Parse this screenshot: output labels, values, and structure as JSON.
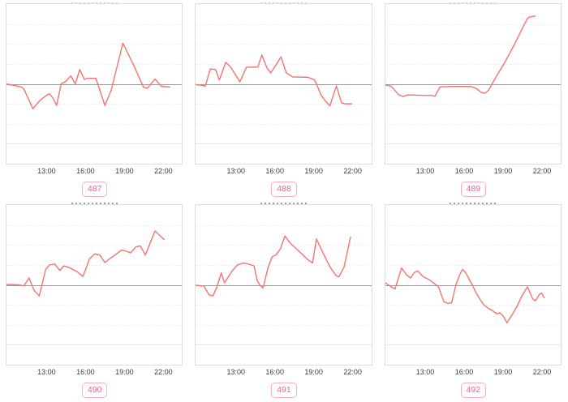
{
  "colors": {
    "line": "#f4736e",
    "zero_line": "#979797",
    "grid_minor": "#f0f0f0",
    "grid_dark": "#e4e4e4",
    "plot_border": "#dcdcdc",
    "tick_label": "#3c3c3c",
    "badge_text": "#ec6592",
    "badge_border": "#f6aac3",
    "background": "#ffffff"
  },
  "axis": {
    "x_tick_labels": [
      "13:00",
      "16:00",
      "19:00",
      "22:00"
    ],
    "x_tick_hours": [
      13,
      16,
      19,
      22
    ],
    "x_domain": [
      9.85,
      23.5
    ],
    "y_domain": [
      -4,
      4
    ],
    "zero_line_value": 0,
    "grid": "horizontal-only",
    "y_axis_labels": "none (values estimated in gridline units, 1 unit per gridline step)"
  },
  "chart_data": [
    {
      "type": "line",
      "label": "487",
      "points": [
        [
          9.85,
          0
        ],
        [
          11.0,
          -0.15
        ],
        [
          11.2,
          -0.25
        ],
        [
          11.9,
          -1.24
        ],
        [
          12.5,
          -0.8
        ],
        [
          13.0,
          -0.55
        ],
        [
          13.2,
          -0.5
        ],
        [
          13.5,
          -0.75
        ],
        [
          13.75,
          -1.08
        ],
        [
          14.1,
          0.0
        ],
        [
          14.45,
          0.12
        ],
        [
          14.85,
          0.4
        ],
        [
          15.2,
          0.0
        ],
        [
          15.55,
          0.72
        ],
        [
          15.9,
          0.22
        ],
        [
          16.1,
          0.28
        ],
        [
          16.8,
          0.28
        ],
        [
          17.5,
          -1.08
        ],
        [
          18.0,
          -0.3
        ],
        [
          18.9,
          2.04
        ],
        [
          19.75,
          0.92
        ],
        [
          20.5,
          -0.16
        ],
        [
          20.8,
          -0.22
        ],
        [
          21.4,
          0.24
        ],
        [
          21.9,
          -0.12
        ],
        [
          22.55,
          -0.16
        ]
      ]
    },
    {
      "type": "line",
      "label": "488",
      "points": [
        [
          9.85,
          -0.03
        ],
        [
          10.4,
          -0.08
        ],
        [
          10.6,
          -0.12
        ],
        [
          11.0,
          0.75
        ],
        [
          11.4,
          0.72
        ],
        [
          11.7,
          0.2
        ],
        [
          12.2,
          1.08
        ],
        [
          12.6,
          0.82
        ],
        [
          13.3,
          0.1
        ],
        [
          13.8,
          0.83
        ],
        [
          14.7,
          0.85
        ],
        [
          15.0,
          1.45
        ],
        [
          15.4,
          0.8
        ],
        [
          15.7,
          0.55
        ],
        [
          16.5,
          1.35
        ],
        [
          16.9,
          0.55
        ],
        [
          17.4,
          0.35
        ],
        [
          18.6,
          0.33
        ],
        [
          19.1,
          0.2
        ],
        [
          19.25,
          0.0
        ],
        [
          19.6,
          -0.55
        ],
        [
          20.0,
          -0.9
        ],
        [
          20.3,
          -1.1
        ],
        [
          20.8,
          -0.1
        ],
        [
          21.2,
          -0.95
        ],
        [
          21.5,
          -1.0
        ],
        [
          22.0,
          -1.0
        ]
      ]
    },
    {
      "type": "line",
      "label": "489",
      "points": [
        [
          9.85,
          -0.05
        ],
        [
          10.3,
          -0.12
        ],
        [
          10.9,
          -0.55
        ],
        [
          11.2,
          -0.63
        ],
        [
          11.6,
          -0.55
        ],
        [
          12.5,
          -0.57
        ],
        [
          13.5,
          -0.58
        ],
        [
          13.7,
          -0.62
        ],
        [
          14.1,
          -0.15
        ],
        [
          15.0,
          -0.13
        ],
        [
          16.5,
          -0.13
        ],
        [
          16.9,
          -0.22
        ],
        [
          17.3,
          -0.43
        ],
        [
          17.6,
          -0.47
        ],
        [
          17.9,
          -0.3
        ],
        [
          18.1,
          -0.05
        ],
        [
          18.5,
          0.4
        ],
        [
          18.8,
          0.72
        ],
        [
          19.1,
          1.04
        ],
        [
          19.5,
          1.52
        ],
        [
          19.9,
          2.0
        ],
        [
          20.3,
          2.52
        ],
        [
          20.6,
          2.92
        ],
        [
          20.9,
          3.28
        ],
        [
          21.1,
          3.36
        ],
        [
          21.5,
          3.4
        ]
      ]
    },
    {
      "type": "line",
      "label": "490",
      "points": [
        [
          9.85,
          0.02
        ],
        [
          10.8,
          0.0
        ],
        [
          11.2,
          -0.05
        ],
        [
          11.6,
          0.35
        ],
        [
          12.0,
          -0.28
        ],
        [
          12.4,
          -0.55
        ],
        [
          12.9,
          0.78
        ],
        [
          13.2,
          1.0
        ],
        [
          13.6,
          1.05
        ],
        [
          14.0,
          0.72
        ],
        [
          14.3,
          0.95
        ],
        [
          14.7,
          0.88
        ],
        [
          15.3,
          0.68
        ],
        [
          15.8,
          0.42
        ],
        [
          16.3,
          1.3
        ],
        [
          16.7,
          1.55
        ],
        [
          17.1,
          1.5
        ],
        [
          17.5,
          1.12
        ],
        [
          17.9,
          1.32
        ],
        [
          18.4,
          1.55
        ],
        [
          18.8,
          1.75
        ],
        [
          19.2,
          1.68
        ],
        [
          19.5,
          1.6
        ],
        [
          19.9,
          1.9
        ],
        [
          20.25,
          1.95
        ],
        [
          20.65,
          1.5
        ],
        [
          21.4,
          2.7
        ],
        [
          22.1,
          2.28
        ]
      ]
    },
    {
      "type": "line",
      "label": "491",
      "points": [
        [
          9.85,
          -0.02
        ],
        [
          10.5,
          -0.06
        ],
        [
          10.9,
          -0.5
        ],
        [
          11.2,
          -0.55
        ],
        [
          11.5,
          -0.12
        ],
        [
          11.85,
          0.6
        ],
        [
          12.1,
          0.1
        ],
        [
          12.7,
          0.7
        ],
        [
          13.1,
          1.0
        ],
        [
          13.6,
          1.1
        ],
        [
          14.1,
          1.02
        ],
        [
          14.4,
          0.95
        ],
        [
          14.65,
          0.2
        ],
        [
          14.9,
          -0.05
        ],
        [
          15.1,
          -0.15
        ],
        [
          15.5,
          0.9
        ],
        [
          15.8,
          1.4
        ],
        [
          16.1,
          1.5
        ],
        [
          16.45,
          1.8
        ],
        [
          16.8,
          2.45
        ],
        [
          17.2,
          2.1
        ],
        [
          17.7,
          1.8
        ],
        [
          18.2,
          1.5
        ],
        [
          18.6,
          1.25
        ],
        [
          18.95,
          1.1
        ],
        [
          19.25,
          2.3
        ],
        [
          19.8,
          1.55
        ],
        [
          20.3,
          0.9
        ],
        [
          20.8,
          0.45
        ],
        [
          21.0,
          0.4
        ],
        [
          21.4,
          0.9
        ],
        [
          21.9,
          2.4
        ]
      ]
    },
    {
      "type": "line",
      "label": "492",
      "points": [
        [
          9.85,
          0.1
        ],
        [
          10.3,
          -0.1
        ],
        [
          10.6,
          -0.2
        ],
        [
          11.1,
          0.85
        ],
        [
          11.5,
          0.5
        ],
        [
          11.8,
          0.35
        ],
        [
          12.1,
          0.62
        ],
        [
          12.35,
          0.7
        ],
        [
          12.8,
          0.4
        ],
        [
          13.2,
          0.28
        ],
        [
          13.6,
          0.1
        ],
        [
          14.0,
          -0.12
        ],
        [
          14.2,
          -0.5
        ],
        [
          14.4,
          -0.85
        ],
        [
          14.7,
          -0.92
        ],
        [
          15.0,
          -0.9
        ],
        [
          15.35,
          0.05
        ],
        [
          15.65,
          0.55
        ],
        [
          15.85,
          0.78
        ],
        [
          16.1,
          0.6
        ],
        [
          16.35,
          0.3
        ],
        [
          16.6,
          0.0
        ],
        [
          16.9,
          -0.4
        ],
        [
          17.2,
          -0.72
        ],
        [
          17.5,
          -1.0
        ],
        [
          17.8,
          -1.15
        ],
        [
          18.2,
          -1.3
        ],
        [
          18.5,
          -1.45
        ],
        [
          18.75,
          -1.4
        ],
        [
          19.0,
          -1.55
        ],
        [
          19.3,
          -1.9
        ],
        [
          19.7,
          -1.5
        ],
        [
          20.1,
          -1.05
        ],
        [
          20.5,
          -0.5
        ],
        [
          20.9,
          -0.1
        ],
        [
          21.3,
          -0.7
        ],
        [
          21.5,
          -0.8
        ],
        [
          21.85,
          -0.45
        ],
        [
          22.0,
          -0.42
        ],
        [
          22.2,
          -0.65
        ]
      ]
    }
  ]
}
